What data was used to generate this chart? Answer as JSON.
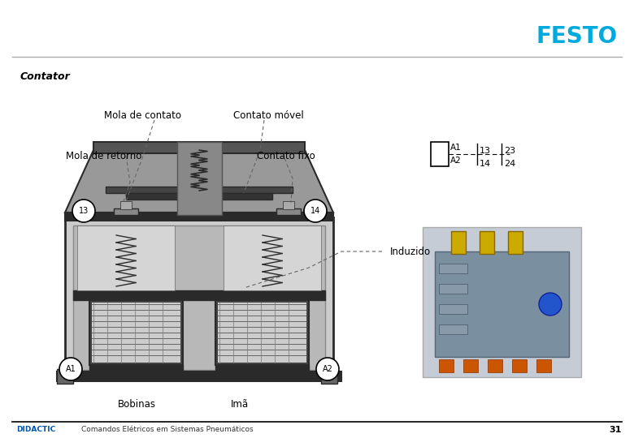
{
  "title": "Contator",
  "festo_text": "FESTO",
  "festo_color": "#00aadd",
  "background_color": "#ffffff",
  "footer_left_text": "DIDACTIC",
  "footer_left_color": "#0055aa",
  "footer_center_text": "Comandos Elétricos em Sistemas Pneumáticos",
  "footer_right_text": "31",
  "footer_line_color": "#000000",
  "header_line_color": "#aaaaaa"
}
